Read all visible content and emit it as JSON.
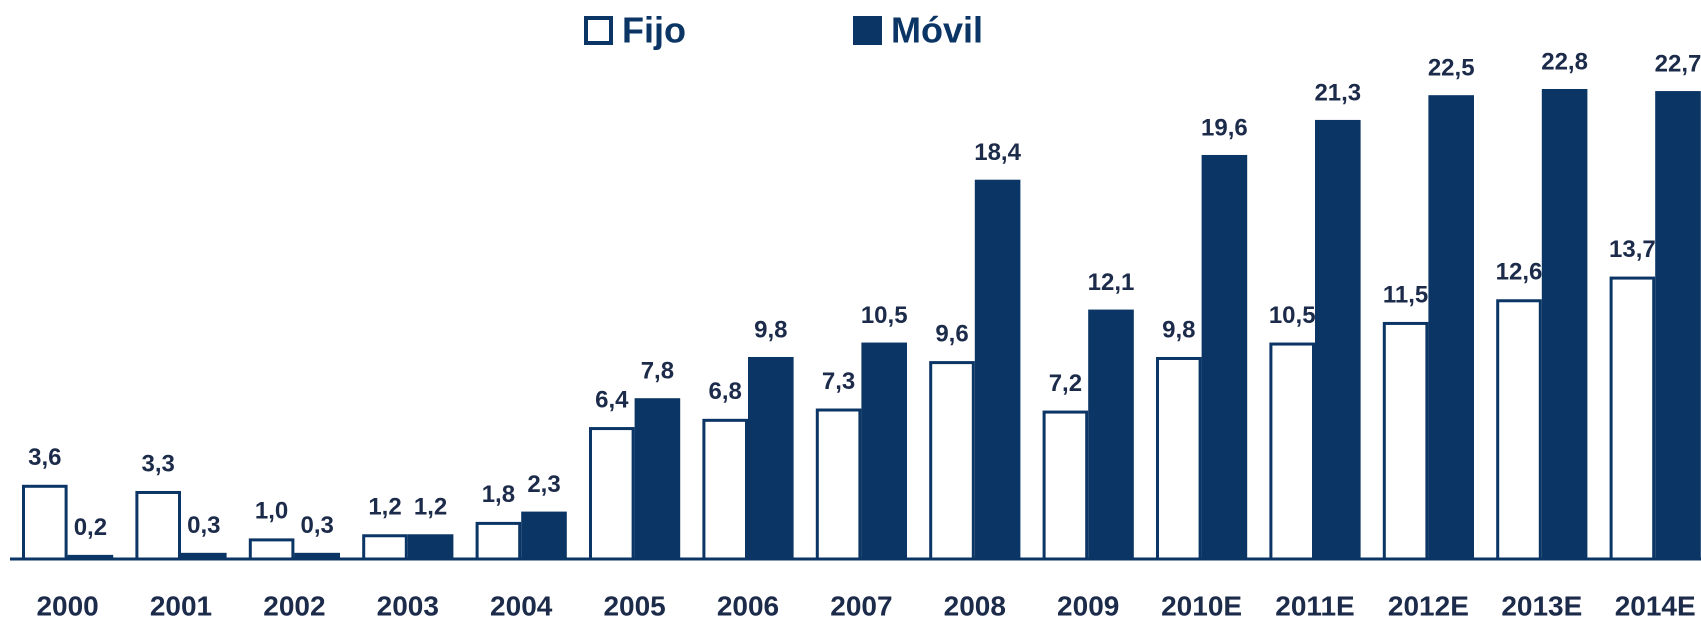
{
  "chart_data": {
    "type": "bar",
    "categories": [
      "2000",
      "2001",
      "2002",
      "2003",
      "2004",
      "2005",
      "2006",
      "2007",
      "2008",
      "2009",
      "2010E",
      "2011E",
      "2012E",
      "2013E",
      "2014E"
    ],
    "series": [
      {
        "name": "Fijo",
        "color": "#ffffff",
        "stroke": "#0b3565",
        "values": [
          3.6,
          3.3,
          1.0,
          1.2,
          1.8,
          6.4,
          6.8,
          7.3,
          9.6,
          7.2,
          9.8,
          10.5,
          11.5,
          12.6,
          13.7
        ],
        "value_labels": [
          "3,6",
          "3,3",
          "1,0",
          "1,2",
          "1,8",
          "6,4",
          "6,8",
          "7,3",
          "9,6",
          "7,2",
          "9,8",
          "10,5",
          "11,5",
          "12,6",
          "13,7"
        ]
      },
      {
        "name": "Móvil",
        "color": "#0b3565",
        "values": [
          0.2,
          0.3,
          0.3,
          1.2,
          2.3,
          7.8,
          9.8,
          10.5,
          18.4,
          12.1,
          19.6,
          21.3,
          22.5,
          22.8,
          22.7
        ],
        "value_labels": [
          "0,2",
          "0,3",
          "0,3",
          "1,2",
          "2,3",
          "7,8",
          "9,8",
          "10,5",
          "18,4",
          "12,1",
          "19,6",
          "21,3",
          "22,5",
          "22,8",
          "22,7"
        ]
      }
    ],
    "legend": "top"
  }
}
